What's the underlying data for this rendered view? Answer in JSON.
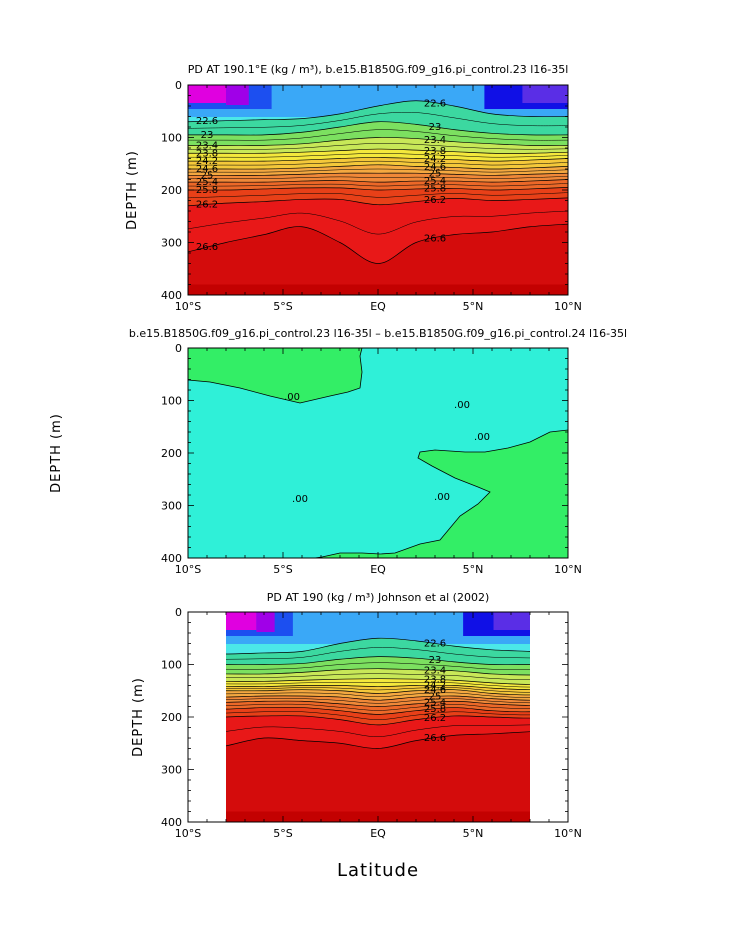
{
  "colors": {
    "band_scale": [
      "#e000e0",
      "#a000e8",
      "#5a2ee6",
      "#1010e6",
      "#1c4ff0",
      "#2a7ff5",
      "#3aa8f7",
      "#3fd0fa",
      "#4be8e8",
      "#3cd8a0",
      "#7ce060",
      "#c8e858",
      "#f4e83c",
      "#f4c83a",
      "#f4a840",
      "#f08838",
      "#ec6828",
      "#e84018",
      "#e81818",
      "#d40c0c",
      "#c00000"
    ],
    "diff_cyan": "#2ff0d8",
    "diff_green": "#33ee66"
  },
  "chart_data": [
    {
      "type": "contour",
      "title": "PD AT 190.1°E (kg / m³), b.e15.B1850G.f09_g16.pi_control.23 l16-35l",
      "ylabel": "DEPTH (m)",
      "xlabel": "",
      "xlim": [
        -10,
        10
      ],
      "ylim": [
        400,
        0
      ],
      "x_ticks": [
        "10°S",
        "5°S",
        "EQ",
        "5°N",
        "10°N"
      ],
      "y_ticks": [
        "0",
        "100",
        "200",
        "300",
        "400"
      ],
      "contour_labels": [
        "22.6",
        "23",
        "23.4",
        "23.8",
        "24.2",
        "24.6",
        "25",
        "25.4",
        "25.8",
        "26.2",
        "26.6"
      ],
      "contours": [
        {
          "level": 22.6,
          "depth": [
            70,
            68,
            66,
            64,
            55,
            40,
            30,
            40,
            55,
            60,
            60
          ]
        },
        {
          "level": 23.0,
          "depth": [
            95,
            95,
            95,
            90,
            80,
            70,
            75,
            85,
            92,
            95,
            95
          ]
        },
        {
          "level": 23.4,
          "depth": [
            115,
            115,
            115,
            112,
            105,
            100,
            102,
            108,
            112,
            115,
            115
          ]
        },
        {
          "level": 23.8,
          "depth": [
            130,
            130,
            130,
            128,
            125,
            122,
            124,
            127,
            130,
            130,
            128
          ]
        },
        {
          "level": 24.2,
          "depth": [
            145,
            145,
            145,
            143,
            140,
            138,
            140,
            142,
            145,
            143,
            140
          ]
        },
        {
          "level": 24.6,
          "depth": [
            160,
            160,
            160,
            158,
            155,
            152,
            155,
            157,
            160,
            158,
            155
          ]
        },
        {
          "level": 25.0,
          "depth": [
            172,
            172,
            172,
            170,
            168,
            168,
            168,
            170,
            172,
            170,
            168
          ]
        },
        {
          "level": 25.4,
          "depth": [
            185,
            185,
            185,
            183,
            182,
            185,
            183,
            183,
            185,
            183,
            180
          ]
        },
        {
          "level": 25.8,
          "depth": [
            200,
            200,
            198,
            196,
            196,
            200,
            198,
            197,
            200,
            198,
            195
          ]
        },
        {
          "level": 26.2,
          "depth": [
            230,
            225,
            222,
            218,
            218,
            228,
            222,
            216,
            220,
            218,
            215
          ]
        },
        {
          "level": 26.6,
          "depth": [
            318,
            300,
            285,
            270,
            300,
            340,
            300,
            285,
            280,
            270,
            265
          ]
        }
      ]
    },
    {
      "type": "contour",
      "title": "b.e15.B1850G.f09_g16.pi_control.23 l16-35l – b.e15.B1850G.f09_g16.pi_control.24 l16-35l",
      "ylabel": "DEPTH (m)",
      "xlabel": "",
      "xlim": [
        -10,
        10
      ],
      "ylim": [
        400,
        0
      ],
      "x_ticks": [
        "10°S",
        "5°S",
        "EQ",
        "5°N",
        "10°N"
      ],
      "y_ticks": [
        "0",
        "100",
        "200",
        "300",
        "400"
      ],
      "contour_labels": [
        ".00",
        ".00",
        ".00",
        ".00",
        ".00"
      ]
    },
    {
      "type": "contour",
      "title": "PD AT 190 (kg / m³) Johnson et al (2002)",
      "ylabel": "DEPTH (m)",
      "xlabel": "Latitude",
      "xlim": [
        -10,
        10
      ],
      "ylim": [
        400,
        0
      ],
      "data_xrange": [
        -8,
        8
      ],
      "x_ticks": [
        "10°S",
        "5°S",
        "EQ",
        "5°N",
        "10°N"
      ],
      "y_ticks": [
        "0",
        "100",
        "200",
        "300",
        "400"
      ],
      "contour_labels": [
        "22.6",
        "23",
        "23.4",
        "23.8",
        "24.2",
        "24.6",
        "25",
        "25.4",
        "25.8",
        "26.2",
        "26.6"
      ],
      "contours": [
        {
          "level": 22.6,
          "depth": [
            80,
            80,
            78,
            75,
            60,
            50,
            55,
            65,
            72,
            75,
            78
          ]
        },
        {
          "level": 23.0,
          "depth": [
            100,
            100,
            100,
            98,
            90,
            85,
            88,
            95,
            100,
            100,
            100
          ]
        },
        {
          "level": 23.4,
          "depth": [
            118,
            118,
            118,
            115,
            110,
            108,
            110,
            112,
            118,
            120,
            118
          ]
        },
        {
          "level": 23.8,
          "depth": [
            132,
            132,
            132,
            130,
            128,
            127,
            128,
            130,
            135,
            138,
            135
          ]
        },
        {
          "level": 24.2,
          "depth": [
            142,
            142,
            142,
            140,
            140,
            142,
            140,
            140,
            145,
            148,
            145
          ]
        },
        {
          "level": 24.6,
          "depth": [
            150,
            150,
            150,
            148,
            150,
            155,
            150,
            148,
            155,
            158,
            155
          ]
        },
        {
          "level": 25.0,
          "depth": [
            162,
            162,
            160,
            160,
            162,
            168,
            162,
            160,
            165,
            168,
            165
          ]
        },
        {
          "level": 25.4,
          "depth": [
            172,
            172,
            170,
            170,
            175,
            180,
            175,
            170,
            175,
            178,
            175
          ]
        },
        {
          "level": 25.8,
          "depth": [
            185,
            185,
            182,
            182,
            188,
            195,
            188,
            182,
            188,
            190,
            185
          ]
        },
        {
          "level": 26.2,
          "depth": [
            205,
            200,
            198,
            198,
            205,
            215,
            205,
            198,
            200,
            202,
            198
          ]
        },
        {
          "level": 26.6,
          "depth": [
            270,
            255,
            240,
            245,
            250,
            260,
            245,
            235,
            232,
            228,
            225
          ]
        }
      ]
    }
  ]
}
